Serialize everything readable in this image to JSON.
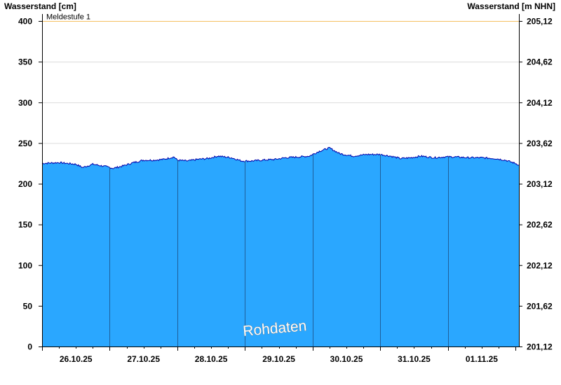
{
  "chart_data": {
    "type": "area",
    "y_left_title": "Wasserstand [cm]",
    "y_right_title": "Wasserstand [m NHN]",
    "y_left_ticks": [
      "0",
      "50",
      "100",
      "150",
      "200",
      "250",
      "300",
      "350",
      "400"
    ],
    "y_left_tick_values": [
      0,
      50,
      100,
      150,
      200,
      250,
      300,
      350,
      400
    ],
    "y_right_ticks": [
      "201,12",
      "201,62",
      "202,12",
      "202,62",
      "203,12",
      "203,62",
      "204,12",
      "204,62",
      "205,12"
    ],
    "ylim": [
      0,
      400
    ],
    "x_labels": [
      "26.10.25",
      "27.10.25",
      "28.10.25",
      "29.10.25",
      "30.10.25",
      "31.10.25",
      "01.11.25"
    ],
    "xlim_days": [
      0,
      7.05
    ],
    "threshold": {
      "label": "Meldestufe 1",
      "value": 400,
      "color": "#f5c060"
    },
    "watermark": "Rohdaten",
    "fill_color": "#2aa7ff",
    "line_color": "#0000aa",
    "series": [
      {
        "x": [
          0,
          0.25,
          0.5,
          0.6,
          0.75,
          0.95,
          1.05,
          1.2,
          1.35,
          1.5,
          1.65,
          1.8,
          1.95,
          2.0,
          2.15,
          2.3,
          2.45,
          2.6,
          2.8,
          2.95,
          3.1,
          3.25,
          3.45,
          3.6,
          3.8,
          3.95,
          4.1,
          4.25,
          4.4,
          4.6,
          4.8,
          5.0,
          5.15,
          5.3,
          5.45,
          5.6,
          5.8,
          5.95,
          6.1,
          6.3,
          6.5,
          6.7,
          6.85,
          7.0,
          7.05
        ],
        "values": [
          225,
          226,
          224,
          220,
          224,
          221,
          219,
          222,
          226,
          229,
          229,
          230,
          233,
          229,
          228,
          230,
          231,
          234,
          232,
          228,
          228,
          229,
          230,
          232,
          233,
          234,
          240,
          244,
          237,
          234,
          236,
          236,
          234,
          231,
          232,
          234,
          232,
          233,
          233,
          232,
          232,
          231,
          229,
          225,
          223
        ]
      }
    ]
  }
}
